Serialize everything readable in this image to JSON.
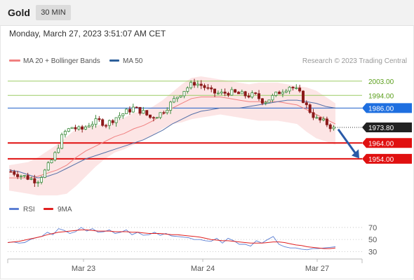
{
  "header": {
    "title": "Gold",
    "timeframe": "30 MIN",
    "datetime": "Monday, March 27, 2023 3:51:07 AM CET"
  },
  "legend": {
    "ma20": {
      "label": "MA 20 + Bollinger Bands",
      "color": "#f08080"
    },
    "ma50": {
      "label": "MA 50",
      "color": "#2d5f9a"
    },
    "source": "Research © 2023 Trading Central"
  },
  "rsi_legend": {
    "rsi": {
      "label": "RSI",
      "color": "#5b7fd4"
    },
    "ma9": {
      "label": "9MA",
      "color": "#e02020"
    }
  },
  "colors": {
    "resistance": "#9ccc65",
    "resistance_text": "#5a9e1a",
    "ma50_level": "#1e5fc8",
    "support": "#e01010",
    "arrow": "#2a5aa8",
    "candle_up": "#3b8a3b",
    "candle_down": "#8b1a1a"
  },
  "chart_data": [
    {
      "type": "candlestick",
      "x_labels": [
        "Mar 23",
        "Mar 24",
        "Mar 27"
      ],
      "levels": [
        {
          "label": "2003.00",
          "value": 2003.0,
          "kind": "resistance"
        },
        {
          "label": "1994.00",
          "value": 1994.0,
          "kind": "resistance"
        },
        {
          "label": "1986.00",
          "value": 1986.0,
          "kind": "ma50"
        },
        {
          "label": "1973.80",
          "value": 1973.8,
          "kind": "last"
        },
        {
          "label": "1964.00",
          "value": 1964.0,
          "kind": "support"
        },
        {
          "label": "1954.00",
          "value": 1954.0,
          "kind": "support"
        }
      ],
      "series": [
        {
          "name": "MA 20 + Bollinger Bands",
          "values": [
            1942,
            1942,
            1942,
            1943,
            1945,
            1947,
            1950,
            1955,
            1959,
            1962,
            1965,
            1968,
            1970,
            1973,
            1975,
            1978,
            1982,
            1986,
            1989,
            1992,
            1993,
            1993,
            1993,
            1992,
            1991,
            1990,
            1990,
            1990,
            1990,
            1989,
            1988,
            1985,
            1982,
            1979,
            1976
          ]
        },
        {
          "name": "MA 50",
          "values": [
            1947,
            1946,
            1944,
            1942,
            1943,
            1945,
            1948,
            1951,
            1954,
            1956,
            1958,
            1960,
            1962,
            1964,
            1966,
            1969,
            1972,
            1976,
            1979,
            1982,
            1984,
            1985,
            1986,
            1986,
            1986,
            1987,
            1988,
            1989,
            1990,
            1991,
            1991,
            1990,
            1989,
            1987,
            1986
          ]
        }
      ],
      "bands_half_width": [
        8,
        9,
        10,
        12,
        14,
        16,
        18,
        18,
        16,
        13,
        11,
        10,
        10,
        10,
        9,
        9,
        9,
        10,
        12,
        13,
        13,
        12,
        11,
        11,
        11,
        11,
        12,
        12,
        12,
        12,
        12,
        14,
        15,
        14,
        13
      ],
      "ylim": [
        1935,
        2010
      ]
    },
    {
      "type": "line",
      "ylabel_ticks": [
        "70",
        "50",
        "30"
      ],
      "ylim": [
        20,
        85
      ],
      "series": [
        {
          "name": "RSI",
          "values": [
            45,
            46,
            44,
            45,
            50,
            53,
            55,
            62,
            58,
            68,
            65,
            60,
            63,
            70,
            64,
            68,
            62,
            63,
            66,
            60,
            62,
            66,
            58,
            62,
            57,
            58,
            62,
            57,
            60,
            56,
            55,
            54,
            53,
            50,
            50,
            48,
            47,
            52,
            44,
            52,
            48,
            42,
            42,
            39,
            48,
            44,
            50,
            55,
            42,
            38,
            36,
            36,
            34,
            33,
            35,
            35,
            36,
            37,
            38
          ]
        },
        {
          "name": "9MA",
          "values": [
            45,
            46,
            47,
            49,
            51,
            53,
            55,
            58,
            60,
            62,
            63,
            64,
            65,
            66,
            66,
            65,
            64,
            64,
            64,
            63,
            63,
            63,
            62,
            62,
            61,
            60,
            60,
            60,
            59,
            58,
            58,
            57,
            56,
            55,
            54,
            52,
            50,
            49,
            48,
            48,
            47,
            46,
            45,
            44,
            44,
            44,
            45,
            46,
            46,
            45,
            43,
            41,
            40,
            38,
            37,
            36,
            35,
            35,
            36
          ]
        }
      ]
    }
  ]
}
